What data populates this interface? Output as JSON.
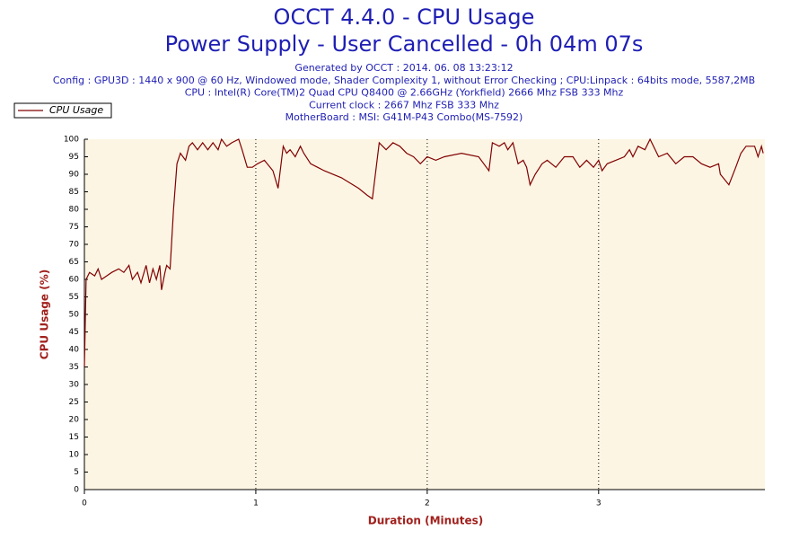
{
  "chart_data": {
    "type": "line",
    "title": "OCCT 4.4.0 - CPU Usage",
    "subtitle": "Power Supply - User Cancelled - 0h 04m 07s",
    "info_lines": [
      "Generated by OCCT : 2014. 06. 08 13:23:12",
      "Config : GPU3D : 1440 x 900 @ 60 Hz, Windowed mode, Shader Complexity 1, without Error Checking ; CPU:Linpack : 64bits mode, 5587,2MB",
      "CPU : Intel(R) Core(TM)2 Quad CPU Q8400 @ 2.66GHz (Yorkfield) 2666 Mhz FSB 333 Mhz",
      "Current clock : 2667 Mhz FSB 333 Mhz",
      "MotherBoard : MSI: G41M-P43 Combo(MS-7592)"
    ],
    "xlabel": "Duration (Minutes)",
    "ylabel": "CPU Usage (%)",
    "x": [
      0,
      0.01,
      0.03,
      0.06,
      0.08,
      0.1,
      0.13,
      0.16,
      0.2,
      0.23,
      0.26,
      0.28,
      0.31,
      0.33,
      0.36,
      0.38,
      0.4,
      0.42,
      0.44,
      0.45,
      0.47,
      0.48,
      0.5,
      0.52,
      0.54,
      0.56,
      0.59,
      0.61,
      0.63,
      0.66,
      0.69,
      0.72,
      0.75,
      0.78,
      0.8,
      0.83,
      0.86,
      0.9,
      0.92,
      0.95,
      0.98,
      1.01,
      1.05,
      1.1,
      1.13,
      1.16,
      1.18,
      1.2,
      1.23,
      1.26,
      1.28,
      1.32,
      1.36,
      1.4,
      1.5,
      1.6,
      1.65,
      1.68,
      1.72,
      1.76,
      1.8,
      1.84,
      1.88,
      1.92,
      1.96,
      2.0,
      2.05,
      2.1,
      2.2,
      2.3,
      2.36,
      2.38,
      2.42,
      2.45,
      2.47,
      2.5,
      2.53,
      2.56,
      2.58,
      2.6,
      2.63,
      2.67,
      2.7,
      2.75,
      2.8,
      2.85,
      2.89,
      2.93,
      2.97,
      3.0,
      3.02,
      3.05,
      3.1,
      3.15,
      3.18,
      3.2,
      3.23,
      3.27,
      3.3,
      3.35,
      3.4,
      3.45,
      3.5,
      3.55,
      3.6,
      3.65,
      3.7,
      3.71,
      3.76,
      3.8,
      3.83,
      3.86,
      3.91,
      3.93,
      3.95,
      3.96
    ],
    "series": [
      {
        "name": "CPU Usage",
        "color": "#800000",
        "values": [
          35,
          60,
          62,
          61,
          63,
          60,
          61,
          62,
          63,
          62,
          64,
          60,
          62,
          59,
          64,
          59,
          63,
          60,
          64,
          57,
          62,
          64,
          63,
          80,
          93,
          96,
          94,
          98,
          99,
          97,
          99,
          97,
          99,
          97,
          100,
          98,
          99,
          100,
          97,
          92,
          92,
          93,
          94,
          91,
          86,
          98,
          96,
          97,
          95,
          98,
          96,
          93,
          92,
          91,
          89,
          86,
          84,
          83,
          99,
          97,
          99,
          98,
          96,
          95,
          93,
          95,
          94,
          95,
          96,
          95,
          91,
          99,
          98,
          99,
          97,
          99,
          93,
          94,
          92,
          87,
          90,
          93,
          94,
          92,
          95,
          95,
          92,
          94,
          92,
          94,
          91,
          93,
          94,
          95,
          97,
          95,
          98,
          97,
          100,
          95,
          96,
          93,
          95,
          95,
          93,
          92,
          93,
          90,
          87,
          92,
          96,
          98,
          98,
          95,
          98,
          96
        ]
      }
    ],
    "xlim": [
      0,
      3.97
    ],
    "ylim": [
      0,
      100
    ],
    "xticks": [
      0,
      1,
      2,
      3
    ],
    "yticks": [
      0,
      5,
      10,
      15,
      20,
      25,
      30,
      35,
      40,
      45,
      50,
      55,
      60,
      65,
      70,
      75,
      80,
      85,
      90,
      95,
      100
    ],
    "xgrid": true,
    "legend": "top-left"
  }
}
